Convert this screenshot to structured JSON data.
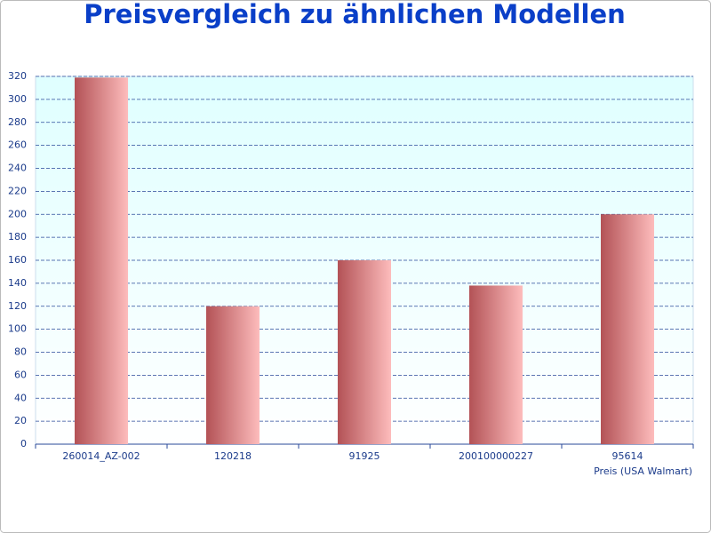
{
  "chart_data": {
    "type": "bar",
    "title": "Preisvergleich zu ähnlichen Modellen",
    "x_label": "Preis (USA Walmart)",
    "categories": [
      "260014_AZ-002",
      "120218",
      "91925",
      "200100000227",
      "95614"
    ],
    "values": [
      319,
      120,
      160,
      138,
      200
    ],
    "color": "#b84c50",
    "ylim": [
      0,
      320
    ],
    "yticks": [
      0,
      20,
      40,
      60,
      80,
      100,
      120,
      140,
      160,
      180,
      200,
      220,
      240,
      260,
      280,
      300,
      320
    ],
    "grid": true
  }
}
